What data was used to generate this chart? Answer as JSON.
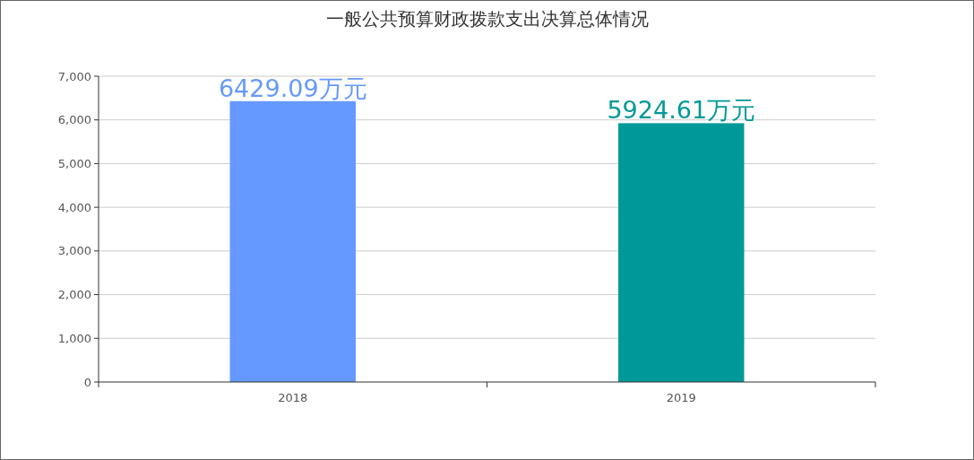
{
  "chart_data": {
    "type": "bar",
    "title": "一般公共预算财政拨款支出决算总体情况",
    "categories": [
      "2018",
      "2019"
    ],
    "values": [
      6429.09,
      5924.61
    ],
    "colors": [
      "#6699ff",
      "#009999"
    ],
    "value_labels": [
      "6429.09万元",
      "5924.61万元"
    ],
    "ylim": [
      0,
      7000
    ],
    "yticks": [
      {
        "value": 0,
        "label": "0"
      },
      {
        "value": 1000,
        "label": "1,000"
      },
      {
        "value": 2000,
        "label": "2,000"
      },
      {
        "value": 3000,
        "label": "3,000"
      },
      {
        "value": 4000,
        "label": "4,000"
      },
      {
        "value": 5000,
        "label": "5,000"
      },
      {
        "value": 6000,
        "label": "6,000"
      },
      {
        "value": 7000,
        "label": "7,000"
      }
    ],
    "grid": "y"
  }
}
